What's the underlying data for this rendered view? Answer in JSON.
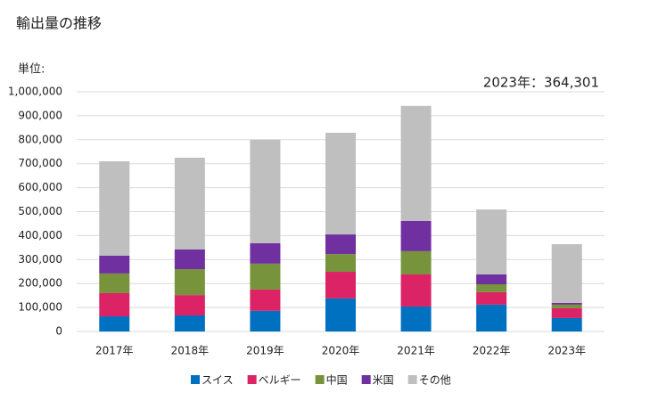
{
  "chart_data": {
    "type": "stacked_bar",
    "title": "輸出量の推移",
    "unit_label": "単位:",
    "annotation": "2023年：364,301",
    "categories": [
      "2017年",
      "2018年",
      "2019年",
      "2020年",
      "2021年",
      "2022年",
      "2023年"
    ],
    "series": [
      {
        "name": "スイス",
        "color": "#0070c0",
        "values": [
          63000,
          67000,
          86000,
          138000,
          104000,
          112000,
          56000
        ]
      },
      {
        "name": "ベルギー",
        "color": "#dc2366",
        "values": [
          97000,
          85000,
          89000,
          111000,
          134000,
          52000,
          41000
        ]
      },
      {
        "name": "中国",
        "color": "#77933c",
        "values": [
          82000,
          108000,
          108000,
          74000,
          97000,
          33000,
          15000
        ]
      },
      {
        "name": "米国",
        "color": "#7030a0",
        "values": [
          74000,
          82000,
          85000,
          82000,
          126000,
          41000,
          7000
        ]
      },
      {
        "name": "その他",
        "color": "#bfbfbf",
        "values": [
          394000,
          383000,
          432000,
          424000,
          480000,
          271000,
          245301
        ]
      }
    ],
    "ylim": [
      0,
      1000000
    ],
    "yticks": [
      0,
      {
        "value": 100000,
        "label": "100,000"
      },
      {
        "value": 200000,
        "label": "200,000"
      },
      {
        "value": 300000,
        "label": "300,000"
      },
      {
        "value": 400000,
        "label": "400,000"
      },
      {
        "value": 500000,
        "label": "500,000"
      },
      {
        "value": 600000,
        "label": "600,000"
      },
      {
        "value": 700000,
        "label": "700,000"
      },
      {
        "value": 800000,
        "label": "800,000"
      },
      {
        "value": 900000,
        "label": "900,000"
      },
      {
        "value": 1000000,
        "label": "1,000,000"
      }
    ],
    "grid": true
  }
}
